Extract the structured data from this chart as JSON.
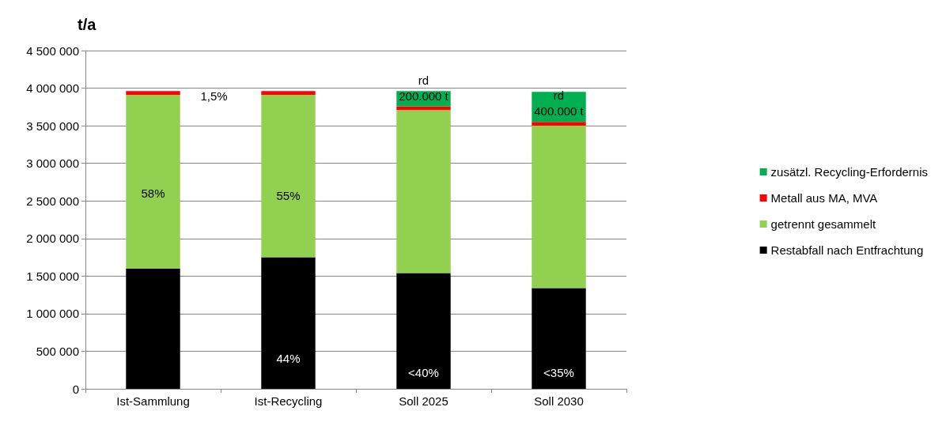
{
  "chart_data": {
    "type": "bar",
    "stacked": true,
    "ylabel": "t/a",
    "categories": [
      "Ist-Sammlung",
      "Ist-Recycling",
      "Soll 2025",
      "Soll 2030"
    ],
    "series": [
      {
        "name": "Restabfall nach Entfrachtung",
        "color": "#000000",
        "values": [
          1600000,
          1750000,
          1540000,
          1340000
        ]
      },
      {
        "name": "getrennt gesammelt",
        "color": "#92d050",
        "values": [
          2310000,
          2160000,
          2170000,
          2160000
        ]
      },
      {
        "name": "Metall aus MA, MVA",
        "color": "#ff0000",
        "values": [
          50000,
          50000,
          50000,
          50000
        ]
      },
      {
        "name": "zusätzl. Recycling-Erfordernis",
        "color": "#00b050",
        "values": [
          0,
          0,
          200000,
          400000
        ]
      }
    ],
    "ylim": [
      0,
      4500000
    ],
    "yticks": [
      0,
      500000,
      1000000,
      1500000,
      2000000,
      2500000,
      3000000,
      3500000,
      4000000,
      4500000
    ],
    "grid": "y",
    "legend": "right",
    "annotations": [
      "1,5%",
      "58%",
      "55%",
      "44%",
      "<40%",
      "<35%",
      "rd\n200.000 t",
      "rd\n400.000 t"
    ]
  }
}
